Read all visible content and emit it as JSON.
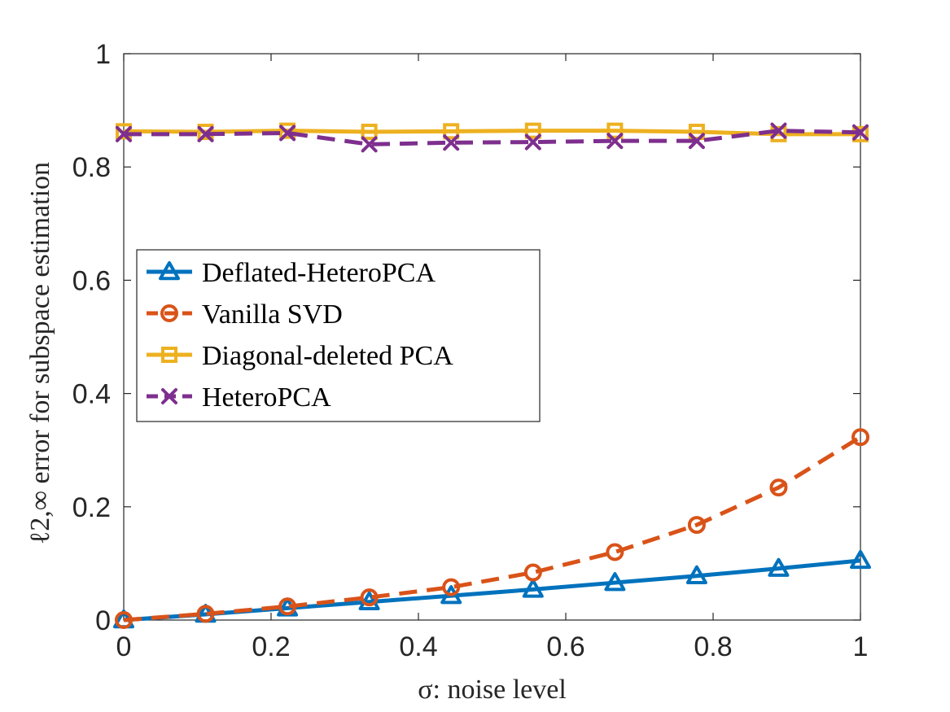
{
  "chart_data": {
    "type": "line",
    "title": "",
    "xlabel": "σ: noise level",
    "ylabel": "ℓ2,∞ error for subspace estimation",
    "xlim": [
      0,
      1
    ],
    "ylim": [
      0,
      1
    ],
    "xticks": [
      0,
      0.2,
      0.4,
      0.6,
      0.8,
      1
    ],
    "xtick_labels": [
      "0",
      "0.2",
      "0.4",
      "0.6",
      "0.8",
      "1"
    ],
    "yticks": [
      0,
      0.2,
      0.4,
      0.6,
      0.8,
      1
    ],
    "ytick_labels": [
      "0",
      "0.2",
      "0.4",
      "0.6",
      "0.8",
      "1"
    ],
    "grid": false,
    "legend_position": "middle-left",
    "x": [
      0,
      0.1111,
      0.2222,
      0.3333,
      0.4444,
      0.5556,
      0.6667,
      0.7778,
      0.8889,
      1
    ],
    "series": [
      {
        "name": "Deflated-HeteroPCA",
        "color": "#0072BD",
        "dash": "solid",
        "marker": "triangle",
        "values": [
          0.0,
          0.01,
          0.021,
          0.032,
          0.043,
          0.054,
          0.066,
          0.078,
          0.091,
          0.105
        ]
      },
      {
        "name": "Vanilla SVD",
        "color": "#D95319",
        "dash": "dashed",
        "marker": "circle",
        "values": [
          0.0,
          0.011,
          0.024,
          0.04,
          0.058,
          0.084,
          0.12,
          0.168,
          0.234,
          0.323
        ]
      },
      {
        "name": "Diagonal-deleted PCA",
        "color": "#EDB120",
        "dash": "solid",
        "marker": "square",
        "values": [
          0.863,
          0.862,
          0.864,
          0.862,
          0.863,
          0.864,
          0.864,
          0.862,
          0.858,
          0.858
        ]
      },
      {
        "name": "HeteroPCA",
        "color": "#7E2F8E",
        "dash": "dashed",
        "marker": "x",
        "values": [
          0.858,
          0.858,
          0.86,
          0.84,
          0.843,
          0.844,
          0.846,
          0.846,
          0.864,
          0.861
        ]
      }
    ]
  }
}
